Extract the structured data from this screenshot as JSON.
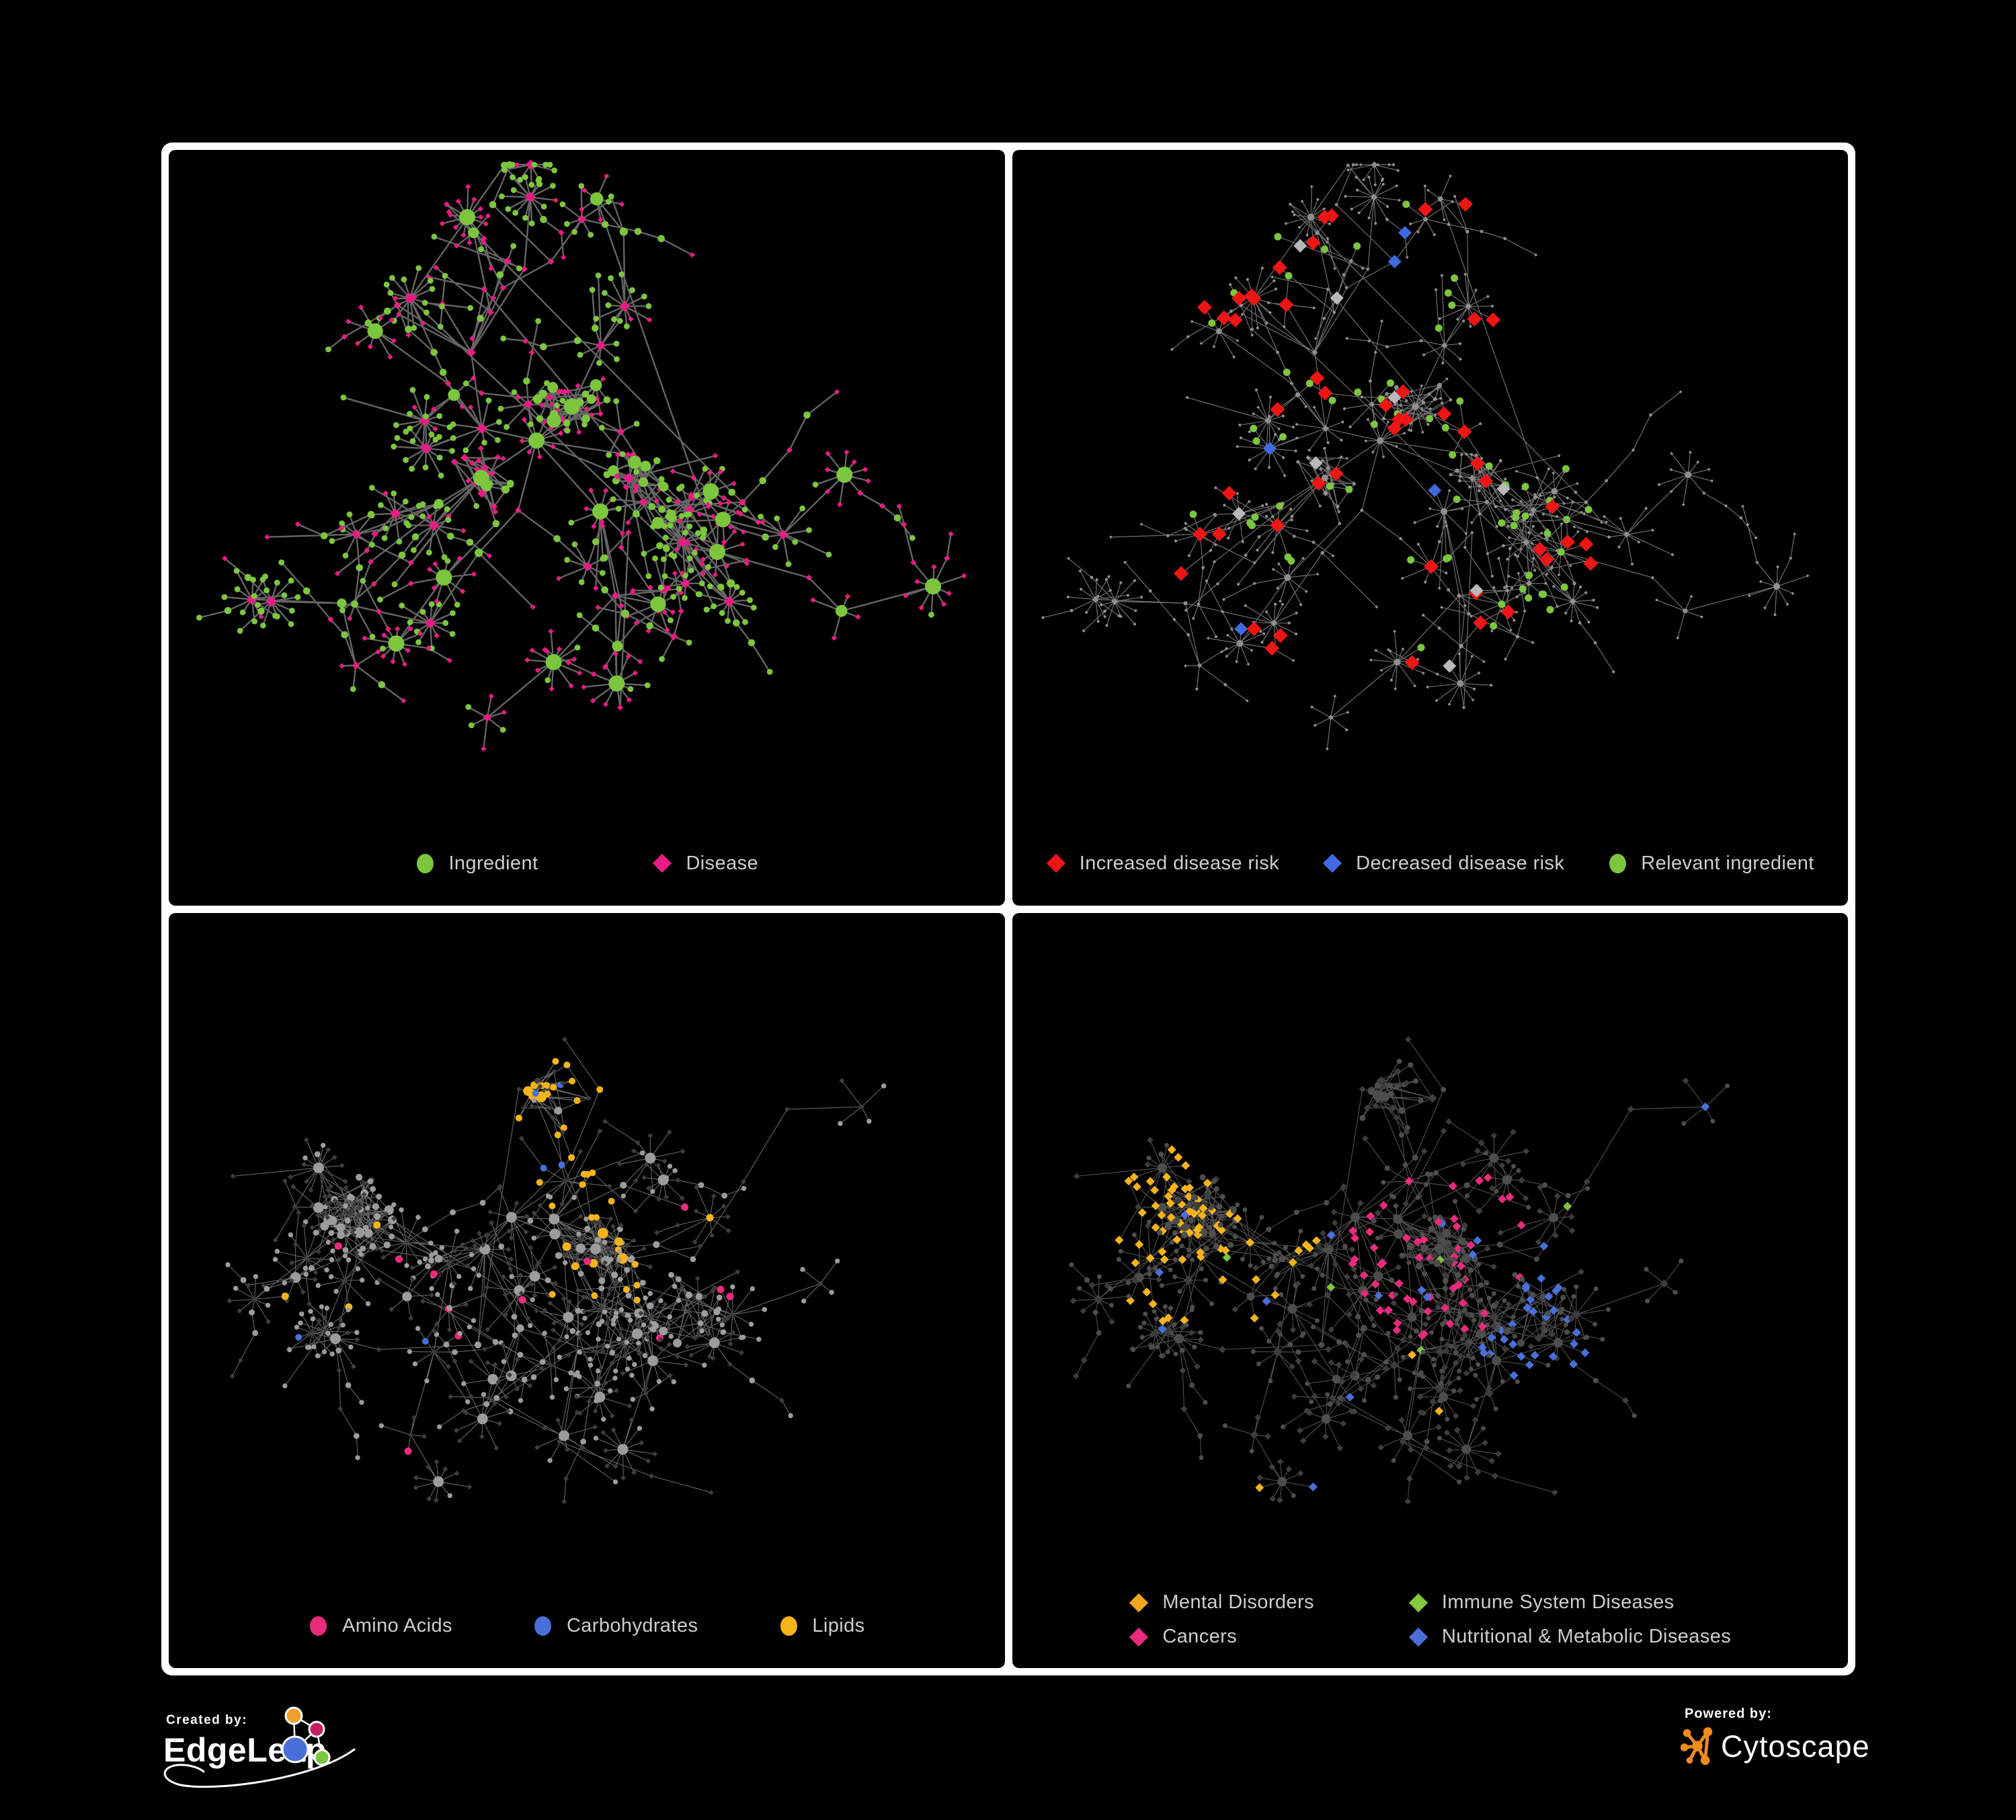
{
  "page": {
    "background": "#000000",
    "frame_color": "#ffffff"
  },
  "panels": [
    {
      "name": "ingredient-disease-network",
      "legend": [
        {
          "label": "Ingredient",
          "shape": "circle",
          "color": "#7cc63e"
        },
        {
          "label": "Disease",
          "shape": "diamond",
          "color": "#e91c84"
        }
      ]
    },
    {
      "name": "disease-risk-network",
      "legend": [
        {
          "label": "Increased disease risk",
          "shape": "diamond",
          "color": "#ee1515"
        },
        {
          "label": "Decreased disease risk",
          "shape": "diamond",
          "color": "#3f6ae0"
        },
        {
          "label": "Relevant ingredient",
          "shape": "circle",
          "color": "#7cc63e"
        }
      ]
    },
    {
      "name": "nutrient-class-network",
      "legend": [
        {
          "label": "Amino Acids",
          "shape": "circle",
          "color": "#ea2a7d"
        },
        {
          "label": "Carbohydrates",
          "shape": "circle",
          "color": "#4a6fd8"
        },
        {
          "label": "Lipids",
          "shape": "circle",
          "color": "#f6b31b"
        }
      ]
    },
    {
      "name": "disease-class-network",
      "legend": [
        {
          "label": "Mental Disorders",
          "shape": "diamond",
          "color": "#f2a71f"
        },
        {
          "label": "Immune System Diseases",
          "shape": "diamond",
          "color": "#82c93d"
        },
        {
          "label": "Cancers",
          "shape": "diamond",
          "color": "#ea2a7d"
        },
        {
          "label": "Nutritional & Metabolic Diseases",
          "shape": "diamond",
          "color": "#4a6fd8"
        }
      ]
    }
  ],
  "network_colors": {
    "green": "#7cc63e",
    "pink": "#e91c84",
    "red": "#ee1515",
    "blue": "#3f6ae0",
    "silver": "#b9b9b9",
    "amber": "#f6b31b",
    "carb_blue": "#4a6fd8",
    "cancer_pink": "#ea2a7d",
    "node_grey": "#8f8f8f",
    "hub_grey": "#9c9c9c",
    "dark_diamond": "#3d3d3d",
    "dark_circle": "#4d4d4d"
  },
  "edge_styles": [
    {
      "color": "#696969",
      "width": 2.4,
      "opacity": 0.95
    },
    {
      "color": "#7a7a7a",
      "width": 1.2,
      "opacity": 0.9
    },
    {
      "color": "#909090",
      "width": 1.1,
      "opacity": 0.7
    },
    {
      "color": "#8f8f8f",
      "width": 1.1,
      "opacity": 0.55
    }
  ],
  "footer": {
    "created_by": "Created by:",
    "creator_name": "EdgeLeap",
    "powered_by": "Powered by:",
    "engine_name": "Cytoscape",
    "cytoscape_orange": "#ef8a1d",
    "edgeleap_node_colors": [
      "#f0a028",
      "#c02060",
      "#4a6fd8",
      "#7ac63c"
    ]
  }
}
